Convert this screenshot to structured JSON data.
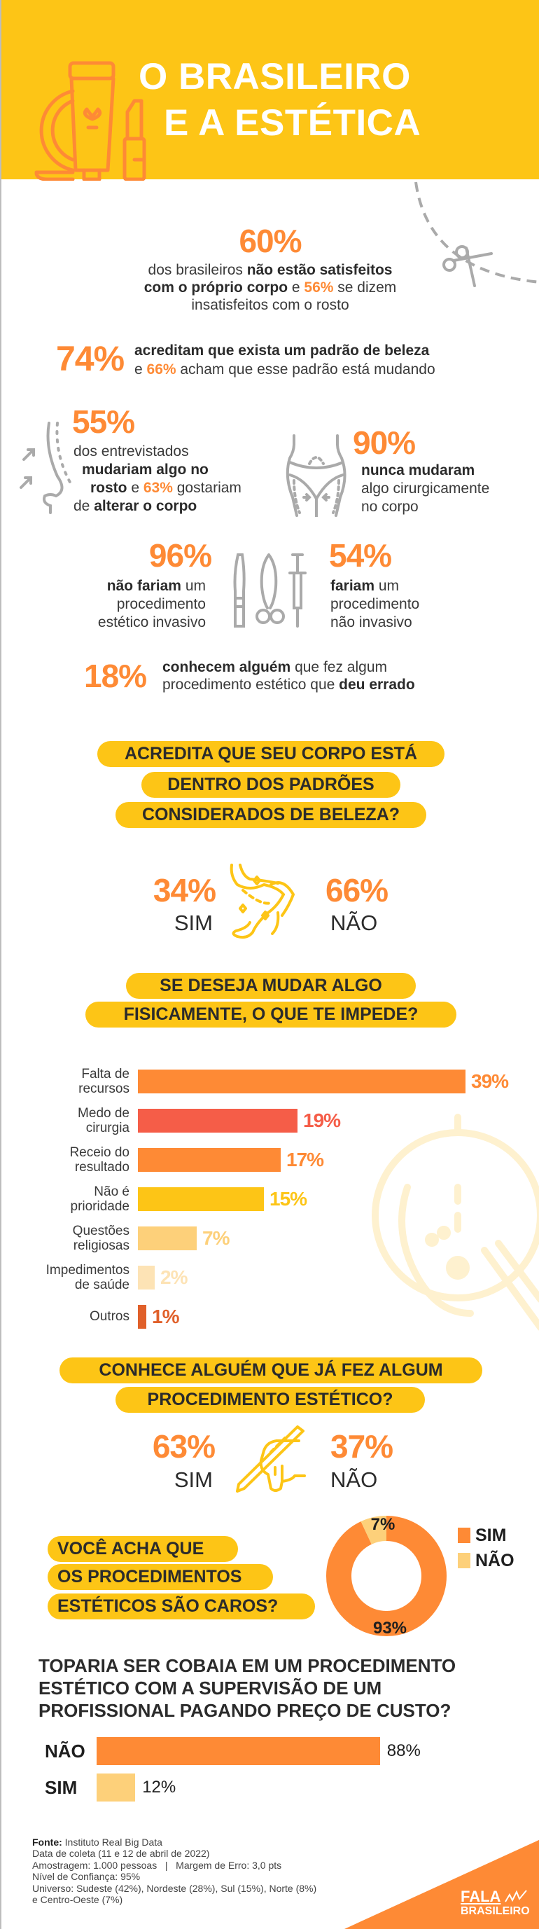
{
  "header": {
    "title_line1": "O BRASILEIRO",
    "title_line2": "E A ESTÉTICA"
  },
  "colors": {
    "yellow": "#FDC516",
    "orange": "#FE8A35",
    "red": "#F55D48",
    "dark_orange": "#E0602A",
    "light_yellow": "#FDD07A",
    "pale_yellow": "#FDE3B5",
    "text_dark": "#2b2b2b",
    "icon_gray": "#aaaaaa"
  },
  "stats": {
    "s60": {
      "value": "60%",
      "lines": [
        [
          [
            "dos brasileiros ",
            ""
          ],
          [
            "não estão satisfeitos",
            "b"
          ]
        ],
        [
          [
            "com o próprio corpo",
            "b"
          ],
          [
            " e ",
            ""
          ],
          [
            "56%",
            "o"
          ],
          [
            " se dizem",
            ""
          ]
        ],
        [
          [
            "insatisfeitos com o rosto",
            ""
          ]
        ]
      ]
    },
    "s74": {
      "value": "74%",
      "lines": [
        [
          [
            "acreditam que exista um padrão de beleza",
            "b"
          ]
        ],
        [
          [
            "e ",
            ""
          ],
          [
            "66%",
            "o"
          ],
          [
            " acham que esse padrão está mudando",
            ""
          ]
        ]
      ]
    },
    "s55": {
      "value": "55%",
      "lines": [
        [
          [
            "dos entrevistados",
            ""
          ]
        ],
        [
          [
            "mudariam algo no",
            "b"
          ]
        ],
        [
          [
            "rosto",
            "b"
          ],
          [
            " e ",
            ""
          ],
          [
            "63%",
            "o"
          ],
          [
            " gostariam",
            ""
          ]
        ],
        [
          [
            "de ",
            ""
          ],
          [
            "alterar o corpo",
            "b"
          ]
        ]
      ]
    },
    "s90": {
      "value": "90%",
      "lines": [
        [
          [
            "nunca mudaram",
            "b"
          ]
        ],
        [
          [
            "algo cirurgicamente",
            ""
          ]
        ],
        [
          [
            "no corpo",
            ""
          ]
        ]
      ]
    },
    "s96": {
      "value": "96%",
      "lines": [
        [
          [
            "não fariam",
            "b"
          ],
          [
            " um",
            ""
          ]
        ],
        [
          [
            "procedimento",
            ""
          ]
        ],
        [
          [
            "estético invasivo",
            ""
          ]
        ]
      ]
    },
    "s54": {
      "value": "54%",
      "lines": [
        [
          [
            "fariam",
            "b"
          ],
          [
            " um",
            ""
          ]
        ],
        [
          [
            "procedimento",
            ""
          ]
        ],
        [
          [
            "não invasivo",
            ""
          ]
        ]
      ]
    },
    "s18": {
      "value": "18%",
      "lines": [
        [
          [
            "conhecem alguém",
            "b"
          ],
          [
            " que fez algum",
            ""
          ]
        ],
        [
          [
            "procedimento estético que ",
            ""
          ],
          [
            "deu errado",
            "b"
          ]
        ]
      ]
    }
  },
  "q1": {
    "lines": [
      "ACREDITA QUE SEU CORPO ESTÁ",
      "DENTRO DOS PADRÕES",
      "CONSIDERADOS DE BELEZA?"
    ],
    "yes_value": "34%",
    "yes_label": "SIM",
    "no_value": "66%",
    "no_label": "NÃO"
  },
  "q2": {
    "lines": [
      "SE DESEJA MUDAR ALGO",
      "FISICAMENTE, O QUE TE IMPEDE?"
    ]
  },
  "q3": {
    "lines": [
      "CONHECE ALGUÉM QUE JÁ FEZ ALGUM",
      "PROCEDIMENTO ESTÉTICO?"
    ],
    "yes_value": "63%",
    "yes_label": "SIM",
    "no_value": "37%",
    "no_label": "NÃO"
  },
  "q4": {
    "lines": [
      "VOCÊ ACHA QUE",
      "OS PROCEDIMENTOS",
      "ESTÉTICOS SÃO CAROS?"
    ]
  },
  "q5": {
    "lines": [
      "TOPARIA SER COBAIA EM UM PROCEDIMENTO",
      "ESTÉTICO COM A SUPERVISÃO DE UM",
      "PROFISSIONAL PAGANDO PREÇO DE CUSTO?"
    ]
  },
  "chart_data": [
    {
      "type": "bar",
      "orientation": "horizontal",
      "categories": [
        "Falta de\nrecursos",
        "Medo de\ncirurgia",
        "Receio do\nresultado",
        "Não é\nprioridade",
        "Questões\nreligiosas",
        "Impedimentos\nde saúde",
        "Outros"
      ],
      "values": [
        39,
        19,
        17,
        15,
        7,
        2,
        1
      ],
      "value_labels": [
        "39%",
        "19%",
        "17%",
        "15%",
        "7%",
        "2%",
        "1%"
      ],
      "bar_colors": [
        "#FE8A35",
        "#F55D48",
        "#FE8A35",
        "#FDC516",
        "#FDD07A",
        "#FDE3B5",
        "#E0602A"
      ],
      "grid": false
    },
    {
      "type": "pie",
      "donut": true,
      "categories": [
        "SIM",
        "NÃO"
      ],
      "values": [
        93,
        7
      ],
      "value_labels": [
        "93%",
        "7%"
      ],
      "colors": [
        "#FE8A35",
        "#FDD07A"
      ],
      "legend": "right"
    },
    {
      "type": "bar",
      "orientation": "horizontal",
      "categories": [
        "NÃO",
        "SIM"
      ],
      "values": [
        88,
        12
      ],
      "value_labels": [
        "88%",
        "12%"
      ],
      "bar_colors": [
        "#FE8A35",
        "#FDD07A"
      ],
      "grid": false
    }
  ],
  "footer": {
    "source_label": "Fonte:",
    "source": " Instituto Real Big Data",
    "lines": [
      "Data de coleta (11 e 12 de abril de 2022)",
      "Amostragem: 1.000 pessoas   |   Margem de Erro: 3,0 pts",
      "Nível de Confiança: 95%",
      "Universo: Sudeste (42%), Nordeste (28%), Sul (15%), Norte (8%)",
      "e Centro-Oeste (7%)"
    ],
    "logo_line1": "FALA",
    "logo_line2": "BRASILEIRO"
  },
  "icons": [
    "cosmetics-icon",
    "scissors-icon",
    "nose-icon",
    "body-icon",
    "surgical-tools-icon",
    "legs-icon",
    "hand-scalpel-icon",
    "face-icon"
  ]
}
